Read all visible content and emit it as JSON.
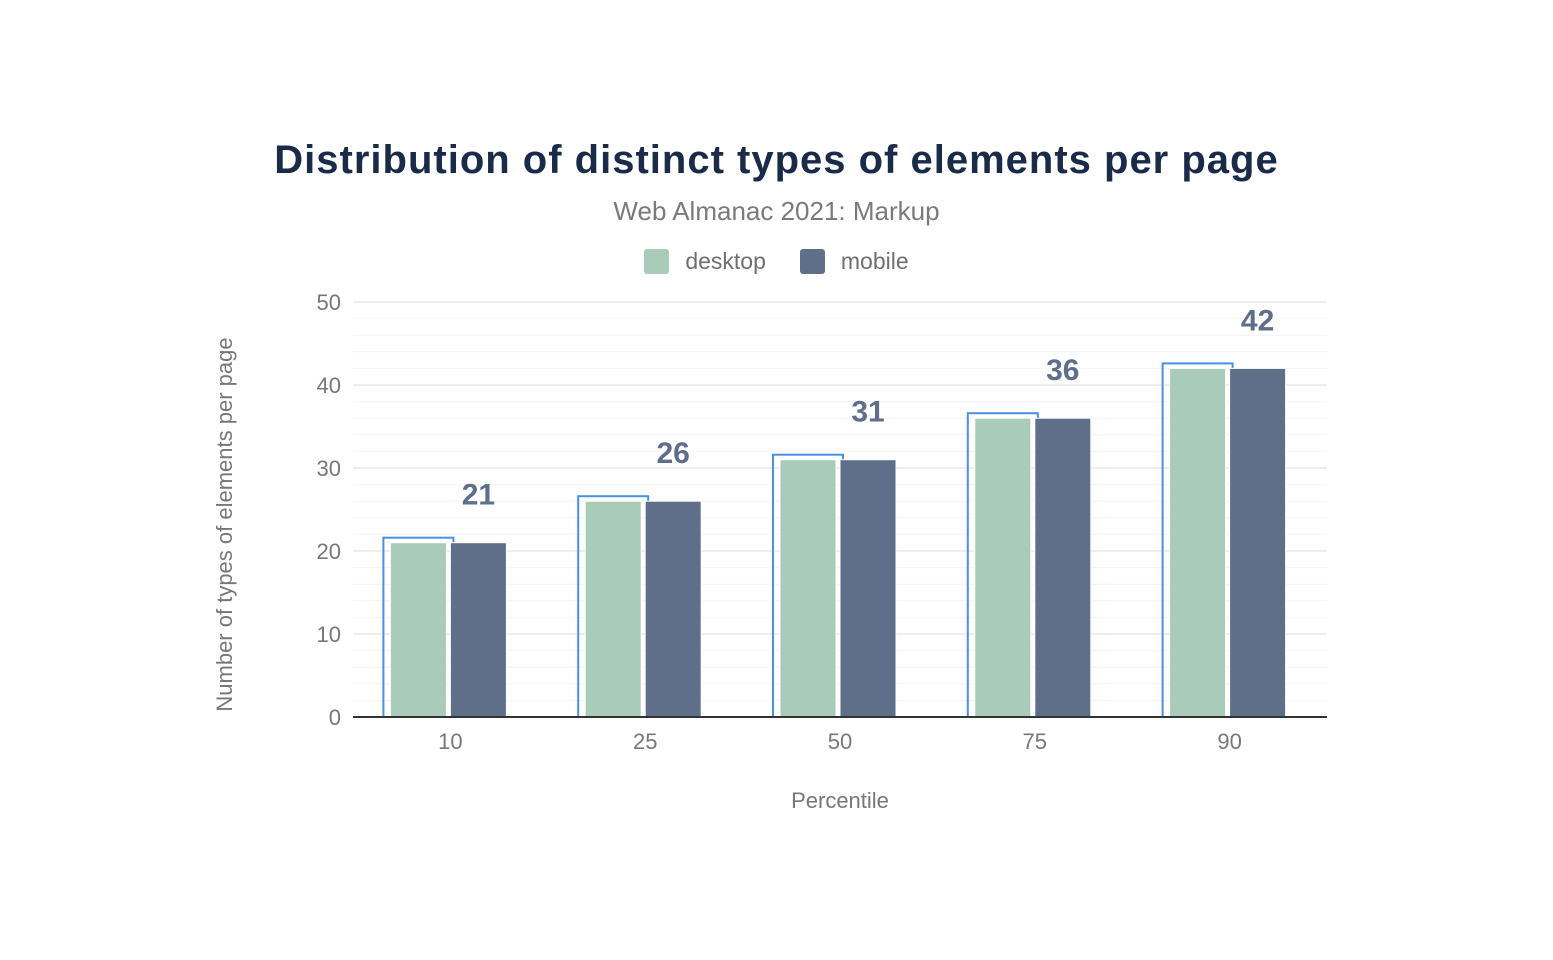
{
  "chart_data": {
    "type": "bar",
    "title": "Distribution of distinct types of elements per page",
    "subtitle": "Web Almanac 2021: Markup",
    "xlabel": "Percentile",
    "ylabel": "Number of types of elements per page",
    "categories": [
      "10",
      "25",
      "50",
      "75",
      "90"
    ],
    "series": [
      {
        "name": "desktop",
        "color": "#a9cbba",
        "values": [
          21,
          26,
          31,
          36,
          42
        ]
      },
      {
        "name": "mobile",
        "color": "#5f6f8a",
        "values": [
          21,
          26,
          31,
          36,
          42
        ]
      }
    ],
    "data_labels": [
      "21",
      "26",
      "31",
      "36",
      "42"
    ],
    "ylim": [
      0,
      50
    ],
    "yticks": [
      0,
      10,
      20,
      30,
      40,
      50
    ],
    "grid": true,
    "legend_position": "top-center",
    "highlight_color": "#4a90e2"
  }
}
